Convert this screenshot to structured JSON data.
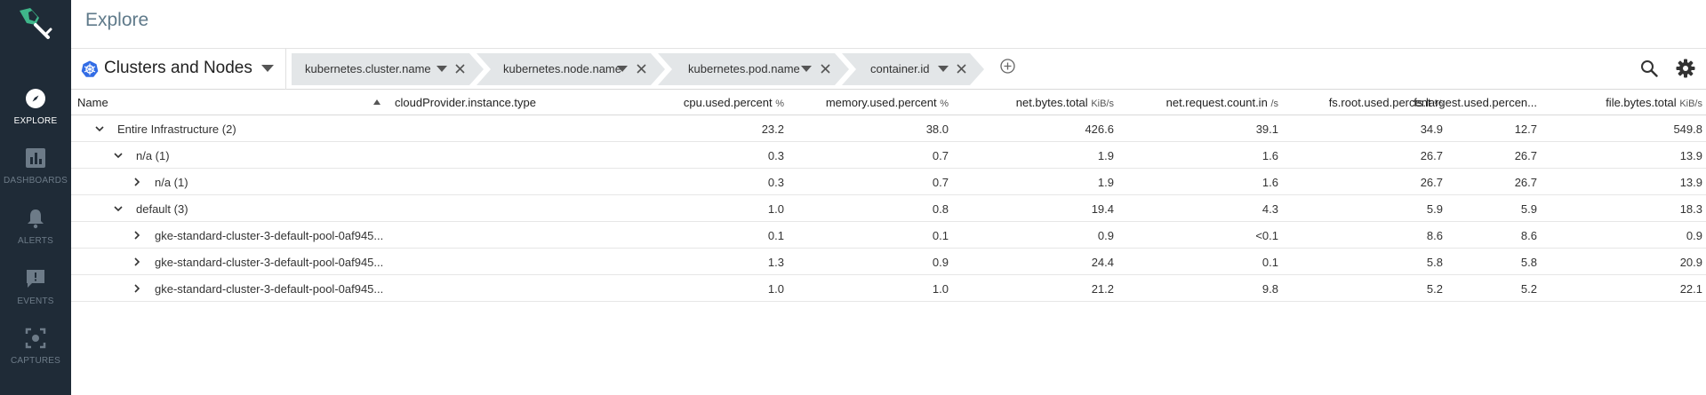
{
  "app": {
    "title": "Explore"
  },
  "sidebar": {
    "items": [
      {
        "label": "EXPLORE",
        "icon": "compass-icon"
      },
      {
        "label": "DASHBOARDS",
        "icon": "bar-chart-icon"
      },
      {
        "label": "ALERTS",
        "icon": "bell-icon"
      },
      {
        "label": "EVENTS",
        "icon": "chat-icon"
      },
      {
        "label": "CAPTURES",
        "icon": "capture-icon"
      }
    ]
  },
  "toolbar": {
    "scope_label": "Clusters and Nodes",
    "breadcrumbs": [
      "kubernetes.cluster.name",
      "kubernetes.node.name",
      "kubernetes.pod.name",
      "container.id"
    ]
  },
  "table": {
    "columns": [
      {
        "label": "Name",
        "unit": ""
      },
      {
        "label": "cloudProvider.instance.type",
        "unit": ""
      },
      {
        "label": "cpu.used.percent",
        "unit": "%"
      },
      {
        "label": "memory.used.percent",
        "unit": "%"
      },
      {
        "label": "net.bytes.total",
        "unit": "KiB/s"
      },
      {
        "label": "net.request.count.in",
        "unit": "/s"
      },
      {
        "label": "fs.root.used.percent",
        "unit": "%"
      },
      {
        "label": "fs.largest.used.percen...",
        "unit": ""
      },
      {
        "label": "file.bytes.total",
        "unit": "KiB/s"
      }
    ],
    "rows": [
      {
        "name": "Entire Infrastructure (2)",
        "values": [
          "23.2",
          "38.0",
          "426.6",
          "39.1",
          "34.9",
          "12.7",
          "549.8"
        ]
      },
      {
        "name": "n/a (1)",
        "values": [
          "0.3",
          "0.7",
          "1.9",
          "1.6",
          "26.7",
          "26.7",
          "13.9"
        ]
      },
      {
        "name": "n/a (1)",
        "values": [
          "0.3",
          "0.7",
          "1.9",
          "1.6",
          "26.7",
          "26.7",
          "13.9"
        ]
      },
      {
        "name": "default (3)",
        "values": [
          "1.0",
          "0.8",
          "19.4",
          "4.3",
          "5.9",
          "5.9",
          "18.3"
        ]
      },
      {
        "name": "gke-standard-cluster-3-default-pool-0af945...",
        "values": [
          "0.1",
          "0.1",
          "0.9",
          "<0.1",
          "8.6",
          "8.6",
          "0.9"
        ]
      },
      {
        "name": "gke-standard-cluster-3-default-pool-0af945...",
        "values": [
          "1.3",
          "0.9",
          "24.4",
          "0.1",
          "5.8",
          "5.8",
          "20.9"
        ]
      },
      {
        "name": "gke-standard-cluster-3-default-pool-0af945...",
        "values": [
          "1.0",
          "1.0",
          "21.2",
          "9.8",
          "5.2",
          "5.2",
          "22.1"
        ]
      }
    ]
  },
  "colors": {
    "sidebar_bg": "#1f2b37",
    "accent": "#5f7a8a",
    "brand_green": "#3fb68a",
    "crumb_bg": "#e3e6e8"
  }
}
